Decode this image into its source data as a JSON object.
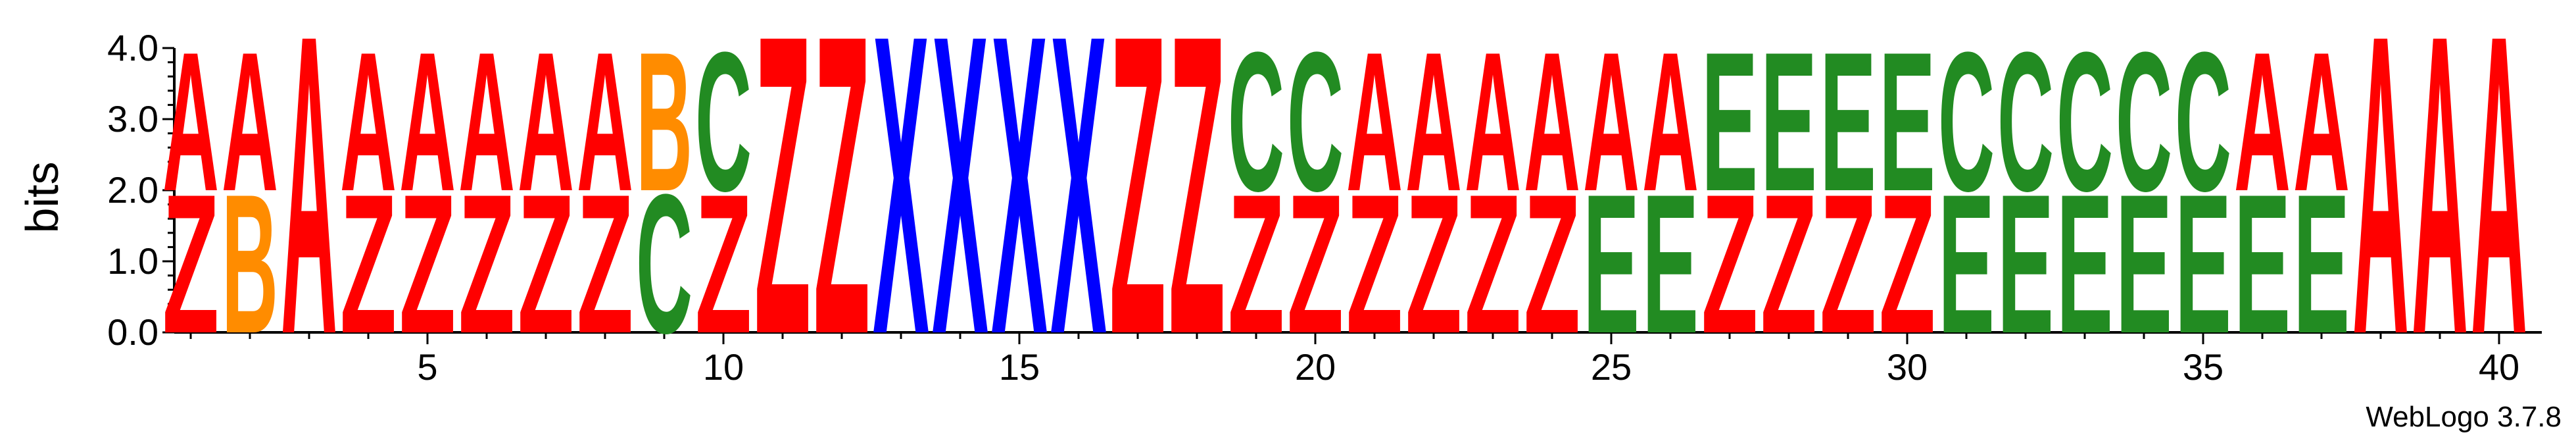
{
  "chart_data": {
    "type": "sequence-logo",
    "title": "",
    "xlabel": "",
    "ylabel": "bits",
    "ylim": [
      0,
      4.0
    ],
    "y_ticks": [
      "0.0",
      "1.0",
      "2.0",
      "3.0",
      "4.0"
    ],
    "x_ticks": [
      5,
      10,
      15,
      20,
      25,
      30,
      35,
      40
    ],
    "x_range": [
      1,
      40
    ],
    "credit": "WebLogo 3.7.8",
    "colors": {
      "A": "#ff0000",
      "Z": "#ff0000",
      "B": "#ff8c00",
      "C": "#228b22",
      "E": "#228b22",
      "X": "#0000ff"
    },
    "positions": [
      {
        "pos": 1,
        "stack": [
          {
            "letter": "Z",
            "bits": 2.0
          },
          {
            "letter": "A",
            "bits": 2.0
          }
        ]
      },
      {
        "pos": 2,
        "stack": [
          {
            "letter": "B",
            "bits": 2.0
          },
          {
            "letter": "A",
            "bits": 2.0
          }
        ]
      },
      {
        "pos": 3,
        "stack": [
          {
            "letter": "A",
            "bits": 4.3
          }
        ]
      },
      {
        "pos": 4,
        "stack": [
          {
            "letter": "Z",
            "bits": 2.0
          },
          {
            "letter": "A",
            "bits": 2.0
          }
        ]
      },
      {
        "pos": 5,
        "stack": [
          {
            "letter": "Z",
            "bits": 2.0
          },
          {
            "letter": "A",
            "bits": 2.0
          }
        ]
      },
      {
        "pos": 6,
        "stack": [
          {
            "letter": "Z",
            "bits": 2.0
          },
          {
            "letter": "A",
            "bits": 2.0
          }
        ]
      },
      {
        "pos": 7,
        "stack": [
          {
            "letter": "Z",
            "bits": 2.0
          },
          {
            "letter": "A",
            "bits": 2.0
          }
        ]
      },
      {
        "pos": 8,
        "stack": [
          {
            "letter": "Z",
            "bits": 2.0
          },
          {
            "letter": "A",
            "bits": 2.0
          }
        ]
      },
      {
        "pos": 9,
        "stack": [
          {
            "letter": "C",
            "bits": 2.0
          },
          {
            "letter": "B",
            "bits": 2.0
          }
        ]
      },
      {
        "pos": 10,
        "stack": [
          {
            "letter": "Z",
            "bits": 2.0
          },
          {
            "letter": "C",
            "bits": 2.0
          }
        ]
      },
      {
        "pos": 11,
        "stack": [
          {
            "letter": "Z",
            "bits": 4.3
          }
        ]
      },
      {
        "pos": 12,
        "stack": [
          {
            "letter": "Z",
            "bits": 4.3
          }
        ]
      },
      {
        "pos": 13,
        "stack": [
          {
            "letter": "X",
            "bits": 4.3
          }
        ]
      },
      {
        "pos": 14,
        "stack": [
          {
            "letter": "X",
            "bits": 4.3
          }
        ]
      },
      {
        "pos": 15,
        "stack": [
          {
            "letter": "X",
            "bits": 4.3
          }
        ]
      },
      {
        "pos": 16,
        "stack": [
          {
            "letter": "X",
            "bits": 4.3
          }
        ]
      },
      {
        "pos": 17,
        "stack": [
          {
            "letter": "Z",
            "bits": 4.3
          }
        ]
      },
      {
        "pos": 18,
        "stack": [
          {
            "letter": "Z",
            "bits": 4.3
          }
        ]
      },
      {
        "pos": 19,
        "stack": [
          {
            "letter": "Z",
            "bits": 2.0
          },
          {
            "letter": "C",
            "bits": 2.0
          }
        ]
      },
      {
        "pos": 20,
        "stack": [
          {
            "letter": "Z",
            "bits": 2.0
          },
          {
            "letter": "C",
            "bits": 2.0
          }
        ]
      },
      {
        "pos": 21,
        "stack": [
          {
            "letter": "Z",
            "bits": 2.0
          },
          {
            "letter": "A",
            "bits": 2.0
          }
        ]
      },
      {
        "pos": 22,
        "stack": [
          {
            "letter": "Z",
            "bits": 2.0
          },
          {
            "letter": "A",
            "bits": 2.0
          }
        ]
      },
      {
        "pos": 23,
        "stack": [
          {
            "letter": "Z",
            "bits": 2.0
          },
          {
            "letter": "A",
            "bits": 2.0
          }
        ]
      },
      {
        "pos": 24,
        "stack": [
          {
            "letter": "Z",
            "bits": 2.0
          },
          {
            "letter": "A",
            "bits": 2.0
          }
        ]
      },
      {
        "pos": 25,
        "stack": [
          {
            "letter": "E",
            "bits": 2.0
          },
          {
            "letter": "A",
            "bits": 2.0
          }
        ]
      },
      {
        "pos": 26,
        "stack": [
          {
            "letter": "E",
            "bits": 2.0
          },
          {
            "letter": "A",
            "bits": 2.0
          }
        ]
      },
      {
        "pos": 27,
        "stack": [
          {
            "letter": "Z",
            "bits": 2.0
          },
          {
            "letter": "E",
            "bits": 2.0
          }
        ]
      },
      {
        "pos": 28,
        "stack": [
          {
            "letter": "Z",
            "bits": 2.0
          },
          {
            "letter": "E",
            "bits": 2.0
          }
        ]
      },
      {
        "pos": 29,
        "stack": [
          {
            "letter": "Z",
            "bits": 2.0
          },
          {
            "letter": "E",
            "bits": 2.0
          }
        ]
      },
      {
        "pos": 30,
        "stack": [
          {
            "letter": "Z",
            "bits": 2.0
          },
          {
            "letter": "E",
            "bits": 2.0
          }
        ]
      },
      {
        "pos": 31,
        "stack": [
          {
            "letter": "E",
            "bits": 2.0
          },
          {
            "letter": "C",
            "bits": 2.0
          }
        ]
      },
      {
        "pos": 32,
        "stack": [
          {
            "letter": "E",
            "bits": 2.0
          },
          {
            "letter": "C",
            "bits": 2.0
          }
        ]
      },
      {
        "pos": 33,
        "stack": [
          {
            "letter": "E",
            "bits": 2.0
          },
          {
            "letter": "C",
            "bits": 2.0
          }
        ]
      },
      {
        "pos": 34,
        "stack": [
          {
            "letter": "E",
            "bits": 2.0
          },
          {
            "letter": "C",
            "bits": 2.0
          }
        ]
      },
      {
        "pos": 35,
        "stack": [
          {
            "letter": "E",
            "bits": 2.0
          },
          {
            "letter": "C",
            "bits": 2.0
          }
        ]
      },
      {
        "pos": 36,
        "stack": [
          {
            "letter": "E",
            "bits": 2.0
          },
          {
            "letter": "A",
            "bits": 2.0
          }
        ]
      },
      {
        "pos": 37,
        "stack": [
          {
            "letter": "E",
            "bits": 2.0
          },
          {
            "letter": "A",
            "bits": 2.0
          }
        ]
      },
      {
        "pos": 38,
        "stack": [
          {
            "letter": "A",
            "bits": 4.3
          }
        ]
      },
      {
        "pos": 39,
        "stack": [
          {
            "letter": "A",
            "bits": 4.3
          }
        ]
      },
      {
        "pos": 40,
        "stack": [
          {
            "letter": "A",
            "bits": 4.3
          }
        ]
      }
    ]
  }
}
